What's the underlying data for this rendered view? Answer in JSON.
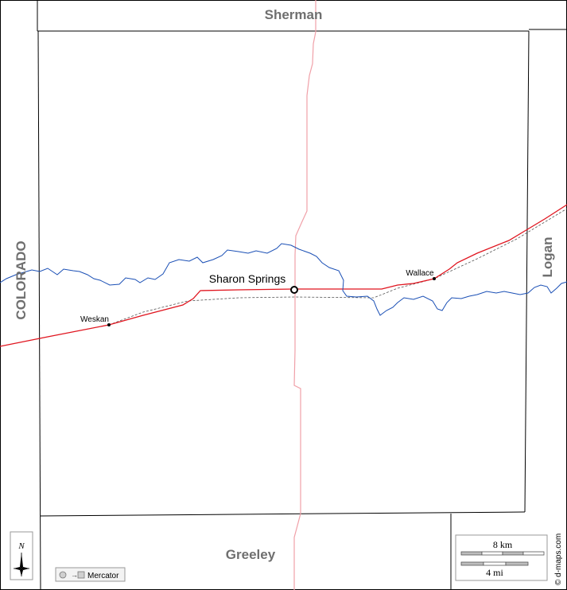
{
  "map": {
    "neighbors": {
      "north": "Sherman",
      "south": "Greeley",
      "east": "Logan",
      "west": "COLORADO"
    },
    "county_seat": "Sharon Springs",
    "towns": [
      "Wallace",
      "Weskan"
    ],
    "scale": {
      "km_label": "8 km",
      "mi_label": "4 mi"
    },
    "projection_label": "Mercator",
    "compass_label": "N",
    "credit": "© d-maps.com",
    "colors": {
      "road": "#e0141e",
      "river": "#1a4fb5",
      "highway": "#f0a0a8",
      "border": "#000000",
      "railway": "#555555"
    }
  }
}
